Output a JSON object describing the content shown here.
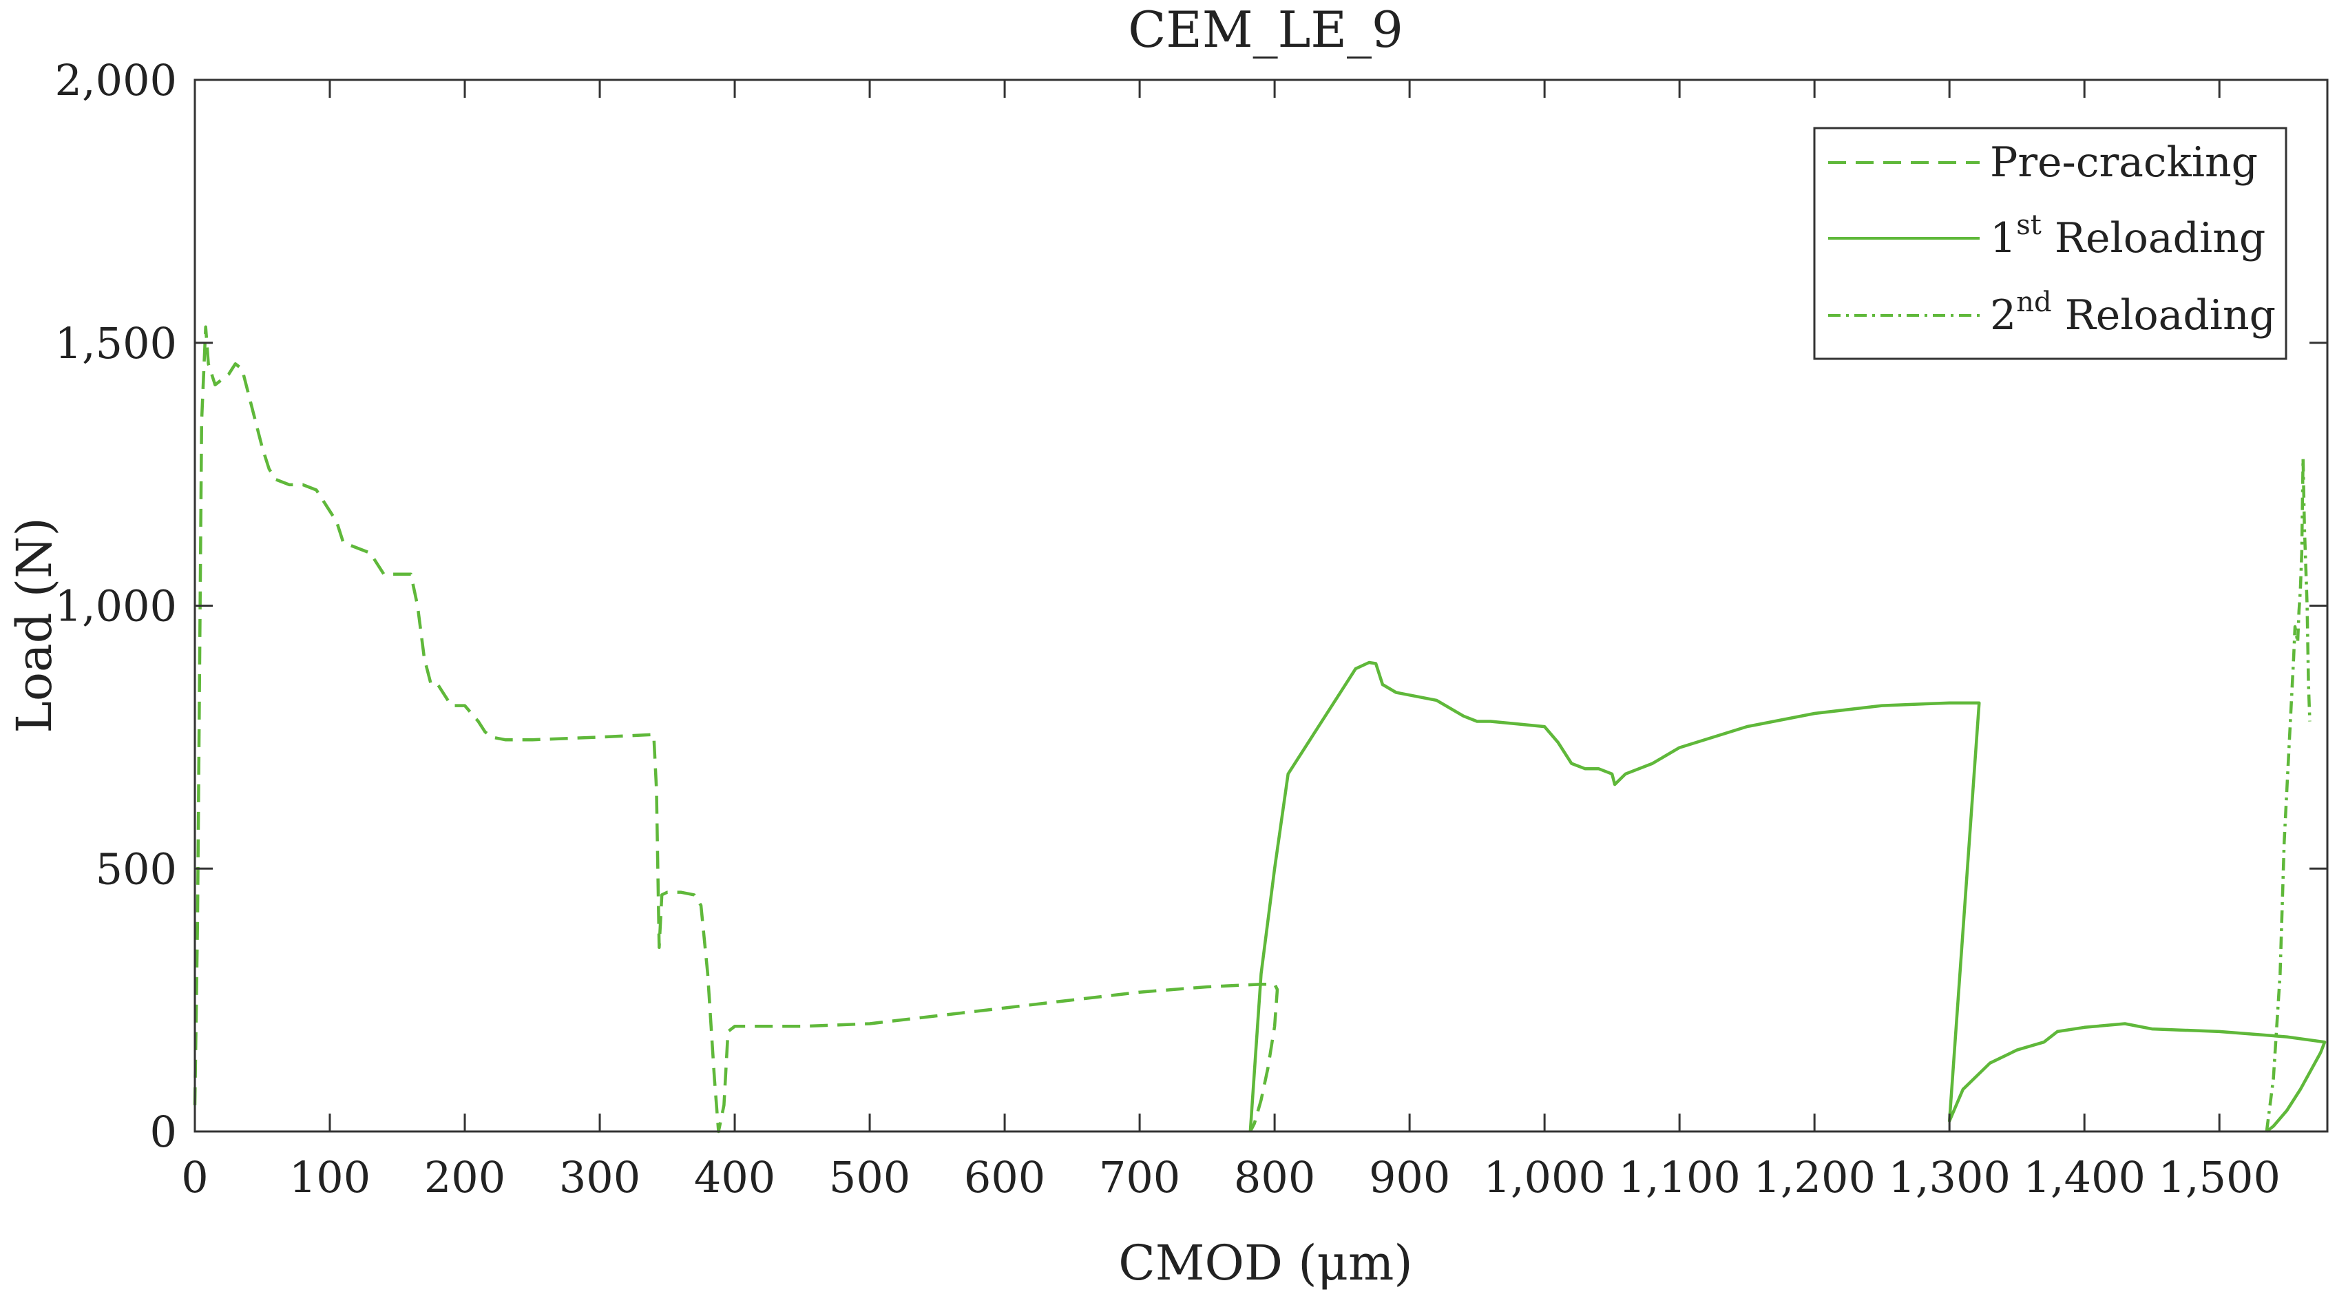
{
  "chart_data": {
    "type": "line",
    "title": "CEM_LE_9",
    "xlabel": "CMOD (μm)",
    "ylabel": "Load (N)",
    "xlim": [
      0,
      1580
    ],
    "ylim": [
      0,
      2000
    ],
    "xticks": [
      0,
      100,
      200,
      300,
      400,
      500,
      600,
      700,
      800,
      900,
      1000,
      1100,
      1200,
      1300,
      1400,
      1500
    ],
    "xtick_labels": [
      "0",
      "100",
      "200",
      "300",
      "400",
      "500",
      "600",
      "700",
      "800",
      "900",
      "1,000",
      "1,100",
      "1,200",
      "1,300",
      "1,400",
      "1,500"
    ],
    "yticks": [
      0,
      500,
      1000,
      1500,
      2000
    ],
    "ytick_labels": [
      "0",
      "500",
      "1,000",
      "1,500",
      "2,000"
    ],
    "grid": false,
    "legend_position": "top-right",
    "colors": {
      "series": "#5fb83a",
      "axis": "#333333"
    },
    "legend": [
      {
        "base": "Pre-cracking",
        "sup": "",
        "suffix": ""
      },
      {
        "base": "1",
        "sup": "st",
        "suffix": " Reloading"
      },
      {
        "base": "2",
        "sup": "nd",
        "suffix": " Reloading"
      }
    ],
    "series": [
      {
        "style": "dashed",
        "x": [
          0,
          2,
          5,
          8,
          10,
          15,
          20,
          25,
          30,
          35,
          40,
          45,
          50,
          55,
          60,
          70,
          80,
          90,
          100,
          105,
          110,
          120,
          130,
          140,
          150,
          160,
          165,
          170,
          175,
          180,
          190,
          200,
          210,
          215,
          220,
          230,
          250,
          300,
          340,
          342,
          344,
          346,
          350,
          360,
          370,
          375,
          380,
          385,
          388,
          392,
          395,
          400,
          420,
          450,
          500,
          550,
          600,
          650,
          700,
          750,
          790,
          800,
          802,
          800,
          795,
          790,
          785,
          782
        ],
        "y": [
          50,
          400,
          1350,
          1530,
          1460,
          1420,
          1430,
          1440,
          1460,
          1450,
          1400,
          1350,
          1300,
          1260,
          1240,
          1230,
          1230,
          1220,
          1180,
          1160,
          1120,
          1110,
          1100,
          1060,
          1060,
          1060,
          1000,
          900,
          850,
          850,
          810,
          810,
          780,
          760,
          750,
          745,
          745,
          750,
          755,
          650,
          350,
          450,
          455,
          455,
          450,
          430,
          300,
          100,
          0,
          50,
          190,
          200,
          200,
          200,
          205,
          220,
          235,
          250,
          265,
          275,
          280,
          280,
          270,
          200,
          120,
          60,
          15,
          0
        ]
      },
      {
        "style": "solid",
        "x": [
          782,
          790,
          800,
          810,
          830,
          850,
          860,
          870,
          875,
          880,
          890,
          900,
          920,
          940,
          950,
          960,
          980,
          1000,
          1010,
          1020,
          1030,
          1040,
          1050,
          1052,
          1060,
          1080,
          1100,
          1150,
          1200,
          1250,
          1300,
          1322,
          1300,
          1310,
          1330,
          1350,
          1370,
          1380,
          1400,
          1430,
          1450,
          1500,
          1550,
          1578,
          1575,
          1560,
          1550,
          1540,
          1535
        ],
        "y": [
          0,
          300,
          500,
          680,
          760,
          840,
          880,
          892,
          890,
          850,
          835,
          830,
          820,
          790,
          780,
          780,
          775,
          770,
          740,
          700,
          690,
          690,
          680,
          660,
          680,
          700,
          730,
          770,
          795,
          810,
          815,
          815,
          20,
          80,
          130,
          155,
          170,
          190,
          198,
          205,
          195,
          190,
          180,
          170,
          150,
          80,
          40,
          10,
          0
        ]
      },
      {
        "style": "dashdot",
        "x": [
          1535,
          1540,
          1545,
          1548,
          1550,
          1552,
          1555,
          1556,
          1558,
          1559,
          1560,
          1561,
          1562,
          1563,
          1565,
          1566,
          1567
        ],
        "y": [
          0,
          100,
          300,
          550,
          650,
          750,
          900,
          960,
          930,
          990,
          1030,
          1100,
          1280,
          1150,
          1000,
          850,
          780
        ]
      }
    ]
  }
}
